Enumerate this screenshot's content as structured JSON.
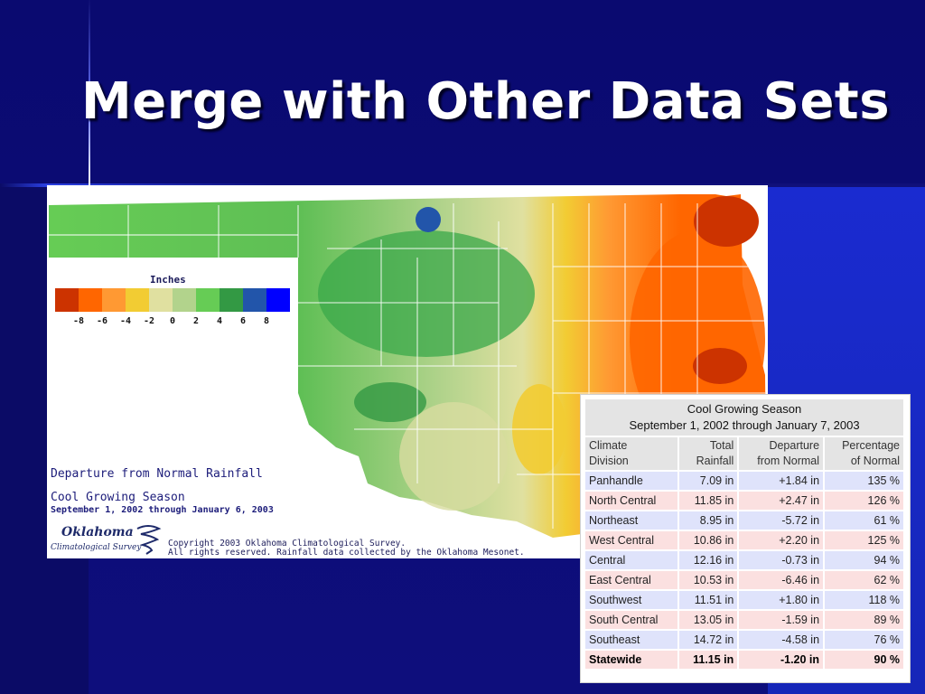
{
  "slide": {
    "title": "Merge with Other Data Sets"
  },
  "map": {
    "legend": {
      "title": "Inches",
      "colors": [
        "#cc3300",
        "#ff6600",
        "#ff9933",
        "#f2cc33",
        "#e0e0a0",
        "#b2d38c",
        "#66cc55",
        "#339944",
        "#2255aa",
        "#0000ff"
      ],
      "ticks": [
        "-8",
        "-6",
        "-4",
        "-2",
        "0",
        "2",
        "4",
        "6",
        "8"
      ]
    },
    "caption_departure": "Departure from Normal Rainfall",
    "caption_season": "Cool Growing Season",
    "caption_dates": "September 1, 2002 through January 6, 2003",
    "logo_line1": "Oklahoma",
    "logo_line2": "Climatological Survey",
    "copyright_line1": "Copyright 2003 Oklahoma Climatological Survey.",
    "copyright_line2": "All rights reserved.  Rainfall data collected by the Oklahoma Mesonet."
  },
  "table": {
    "caption_line1": "Cool Growing Season",
    "caption_line2": "September 1, 2002 through January 7, 2003",
    "headers": {
      "division_1": "Climate",
      "division_2": "Division",
      "total_1": "Total",
      "total_2": "Rainfall",
      "departure_1": "Departure",
      "departure_2": "from Normal",
      "percent_1": "Percentage",
      "percent_2": "of Normal"
    },
    "rows": [
      {
        "division": "Panhandle",
        "total": "7.09 in",
        "departure": "+1.84 in",
        "percent": "135 %"
      },
      {
        "division": "North Central",
        "total": "11.85 in",
        "departure": "+2.47 in",
        "percent": "126 %"
      },
      {
        "division": "Northeast",
        "total": "8.95 in",
        "departure": "-5.72 in",
        "percent": "61 %"
      },
      {
        "division": "West Central",
        "total": "10.86 in",
        "departure": "+2.20 in",
        "percent": "125 %"
      },
      {
        "division": "Central",
        "total": "12.16 in",
        "departure": "-0.73 in",
        "percent": "94 %"
      },
      {
        "division": "East Central",
        "total": "10.53 in",
        "departure": "-6.46 in",
        "percent": "62 %"
      },
      {
        "division": "Southwest",
        "total": "11.51 in",
        "departure": "+1.80 in",
        "percent": "118 %"
      },
      {
        "division": "South Central",
        "total": "13.05 in",
        "departure": "-1.59 in",
        "percent": "89 %"
      },
      {
        "division": "Southeast",
        "total": "14.72 in",
        "departure": "-4.58 in",
        "percent": "76 %"
      }
    ],
    "statewide": {
      "division": "Statewide",
      "total": "11.15 in",
      "departure": "-1.20 in",
      "percent": "90 %"
    }
  }
}
